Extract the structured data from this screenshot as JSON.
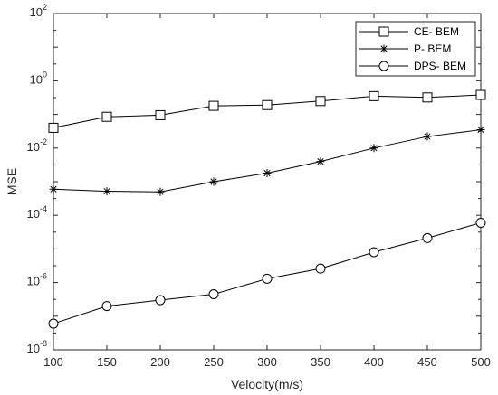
{
  "chart_data": {
    "type": "line",
    "xlabel": "Velocity(m/s)",
    "ylabel": "MSE",
    "x": [
      100,
      150,
      200,
      250,
      300,
      350,
      400,
      450,
      500
    ],
    "xlim": [
      100,
      500
    ],
    "xticks": [
      "100",
      "150",
      "200",
      "250",
      "300",
      "350",
      "400",
      "450",
      "500"
    ],
    "ylim": [
      1e-08,
      100
    ],
    "yscale": "log",
    "yticks": [
      {
        "value": 1e-08,
        "base": "10",
        "exp": "-8"
      },
      {
        "value": 1e-06,
        "base": "10",
        "exp": "-6"
      },
      {
        "value": 0.0001,
        "base": "10",
        "exp": "-4"
      },
      {
        "value": 0.01,
        "base": "10",
        "exp": "-2"
      },
      {
        "value": 1,
        "base": "10",
        "exp": "0"
      },
      {
        "value": 100,
        "base": "10",
        "exp": "2"
      }
    ],
    "grid": false,
    "legend_position": "top-right",
    "series": [
      {
        "name": "CE- BEM",
        "marker": "square",
        "values": [
          0.04,
          0.085,
          0.095,
          0.18,
          0.19,
          0.25,
          0.35,
          0.32,
          0.38
        ]
      },
      {
        "name": "P- BEM",
        "marker": "asterisk",
        "values": [
          0.0006,
          0.00052,
          0.0005,
          0.001,
          0.0018,
          0.004,
          0.01,
          0.022,
          0.035
        ]
      },
      {
        "name": "DPS- BEM",
        "marker": "circle",
        "values": [
          6e-08,
          2e-07,
          3e-07,
          4.5e-07,
          1.3e-06,
          2.6e-06,
          8e-06,
          2.1e-05,
          6e-05
        ]
      }
    ],
    "line_color": "#000000"
  }
}
